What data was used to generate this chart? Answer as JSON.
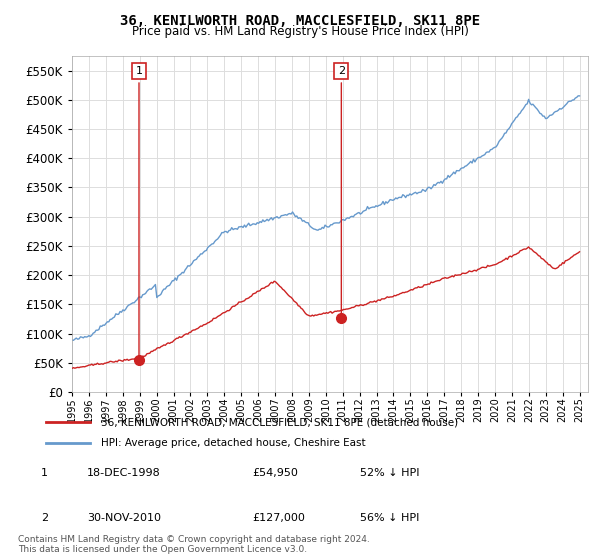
{
  "title": "36, KENILWORTH ROAD, MACCLESFIELD, SK11 8PE",
  "subtitle": "Price paid vs. HM Land Registry's House Price Index (HPI)",
  "legend_line1": "36, KENILWORTH ROAD, MACCLESFIELD, SK11 8PE (detached house)",
  "legend_line2": "HPI: Average price, detached house, Cheshire East",
  "footer": "Contains HM Land Registry data © Crown copyright and database right 2024.\nThis data is licensed under the Open Government Licence v3.0.",
  "transaction1_date": "18-DEC-1998",
  "transaction1_price": "£54,950",
  "transaction1_hpi": "52% ↓ HPI",
  "transaction1_year": 1998.96,
  "transaction1_value": 54950,
  "transaction2_date": "30-NOV-2010",
  "transaction2_price": "£127,000",
  "transaction2_hpi": "56% ↓ HPI",
  "transaction2_year": 2010.92,
  "transaction2_value": 127000,
  "hpi_color": "#6699cc",
  "price_color": "#cc2222",
  "marker_color": "#cc2222",
  "background_color": "#ffffff",
  "grid_color": "#dddddd",
  "ylim": [
    0,
    575000
  ],
  "yticks": [
    0,
    50000,
    100000,
    150000,
    200000,
    250000,
    300000,
    350000,
    400000,
    450000,
    500000,
    550000
  ],
  "ytick_labels": [
    "£0",
    "£50K",
    "£100K",
    "£150K",
    "£200K",
    "£250K",
    "£300K",
    "£350K",
    "£400K",
    "£450K",
    "£500K",
    "£550K"
  ]
}
